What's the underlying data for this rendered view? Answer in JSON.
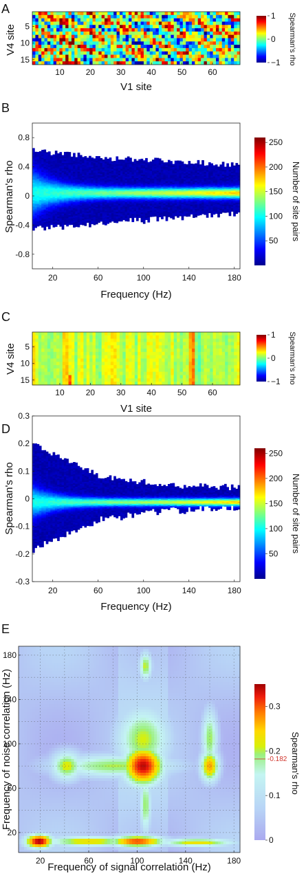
{
  "chart_data": [
    {
      "panel": "A",
      "type": "heatmap",
      "xlabel": "V1 site",
      "ylabel": "V4 site",
      "x_ticks": [
        "10",
        "20",
        "30",
        "40",
        "50",
        "60"
      ],
      "y_ticks": [
        "5",
        "10",
        "15"
      ],
      "xlim": [
        1,
        69
      ],
      "ylim": [
        1,
        16
      ],
      "colorbar": {
        "label": "Spearman's rho",
        "ticks": [
          "1",
          "0",
          "−1"
        ],
        "range": [
          -1,
          1
        ]
      }
    },
    {
      "panel": "B",
      "type": "heatmap",
      "xlabel": "Frequency (Hz)",
      "ylabel": "Spearman's rho",
      "x_ticks": [
        "20",
        "60",
        "100",
        "140",
        "180"
      ],
      "y_ticks": [
        "0.8",
        "0.4",
        "0",
        "-0.4",
        "-0.8"
      ],
      "xlim": [
        2,
        185
      ],
      "ylim": [
        -1,
        1
      ],
      "band": {
        "center": 0.05,
        "upper": [
          0.62,
          0.52,
          0.48,
          0.42
        ],
        "lower": [
          -0.44,
          -0.36,
          -0.3,
          -0.22
        ]
      },
      "colorbar": {
        "label": "Number of site pairs",
        "ticks": [
          "250",
          "200",
          "150",
          "100",
          "50"
        ],
        "range": [
          0,
          260
        ]
      }
    },
    {
      "panel": "C",
      "type": "heatmap",
      "xlabel": "V1 site",
      "ylabel": "V4 site",
      "x_ticks": [
        "10",
        "20",
        "30",
        "40",
        "50",
        "60"
      ],
      "y_ticks": [
        "5",
        "10",
        "15"
      ],
      "xlim": [
        1,
        69
      ],
      "ylim": [
        1,
        16
      ],
      "colorbar": {
        "label": "Spearman's rho",
        "ticks": [
          "1",
          "0",
          "−1"
        ],
        "range": [
          -1,
          1
        ]
      }
    },
    {
      "panel": "D",
      "type": "heatmap",
      "xlabel": "Frequency (Hz)",
      "ylabel": "Spearman's rho",
      "x_ticks": [
        "20",
        "60",
        "100",
        "140",
        "180"
      ],
      "y_ticks": [
        "0.3",
        "0.2",
        "0.1",
        "0",
        "-0.1",
        "-0.2",
        "-0.3"
      ],
      "xlim": [
        2,
        185
      ],
      "ylim": [
        -0.3,
        0.3
      ],
      "band": {
        "center": -0.01,
        "upper": [
          0.2,
          0.08,
          0.05,
          0.04
        ],
        "lower": [
          -0.18,
          -0.07,
          -0.04,
          -0.03
        ]
      },
      "colorbar": {
        "label": "Number of site pairs",
        "ticks": [
          "250",
          "200",
          "150",
          "100",
          "50"
        ],
        "range": [
          0,
          260
        ]
      }
    },
    {
      "panel": "E",
      "type": "heatmap",
      "xlabel": "Frequency of signal correlation (Hz)",
      "ylabel": "Frequency of noise correlation (Hz)",
      "x_ticks": [
        "20",
        "60",
        "100",
        "140",
        "180"
      ],
      "y_ticks": [
        "180",
        "140",
        "100",
        "60",
        "20"
      ],
      "xlim": [
        2,
        185
      ],
      "ylim": [
        2,
        188
      ],
      "grid": true,
      "blobs": [
        {
          "x": 105,
          "y": 80,
          "sx": 13,
          "sy": 14,
          "v": 0.34
        },
        {
          "x": 105,
          "y": 104,
          "sx": 17,
          "sy": 23,
          "v": 0.21
        },
        {
          "x": 82,
          "y": 80,
          "sx": 40,
          "sy": 8,
          "v": 0.2
        },
        {
          "x": 42,
          "y": 80,
          "sx": 10,
          "sy": 10,
          "v": 0.22
        },
        {
          "x": 160,
          "y": 80,
          "sx": 6,
          "sy": 11,
          "v": 0.27
        },
        {
          "x": 160,
          "y": 105,
          "sx": 5,
          "sy": 20,
          "v": 0.2
        },
        {
          "x": 19,
          "y": 12,
          "sx": 9,
          "sy": 5,
          "v": 0.35
        },
        {
          "x": 100,
          "y": 12,
          "sx": 18,
          "sy": 4,
          "v": 0.31
        },
        {
          "x": 60,
          "y": 12,
          "sx": 28,
          "sy": 3.5,
          "v": 0.24
        },
        {
          "x": 150,
          "y": 11,
          "sx": 25,
          "sy": 3,
          "v": 0.23
        },
        {
          "x": 107,
          "y": 170,
          "sx": 4,
          "sy": 10,
          "v": 0.21
        },
        {
          "x": 107,
          "y": 45,
          "sx": 3.5,
          "sy": 20,
          "v": 0.2
        }
      ],
      "colorbar": {
        "label": "Spearman's rho",
        "ticks": [
          "0.3",
          "0.2",
          "0.1",
          "0"
        ],
        "range": [
          0,
          0.35
        ],
        "marker": "-0.182",
        "marker_value": 0.182
      }
    }
  ],
  "panel_labels": [
    "A",
    "B",
    "C",
    "D",
    "E"
  ]
}
